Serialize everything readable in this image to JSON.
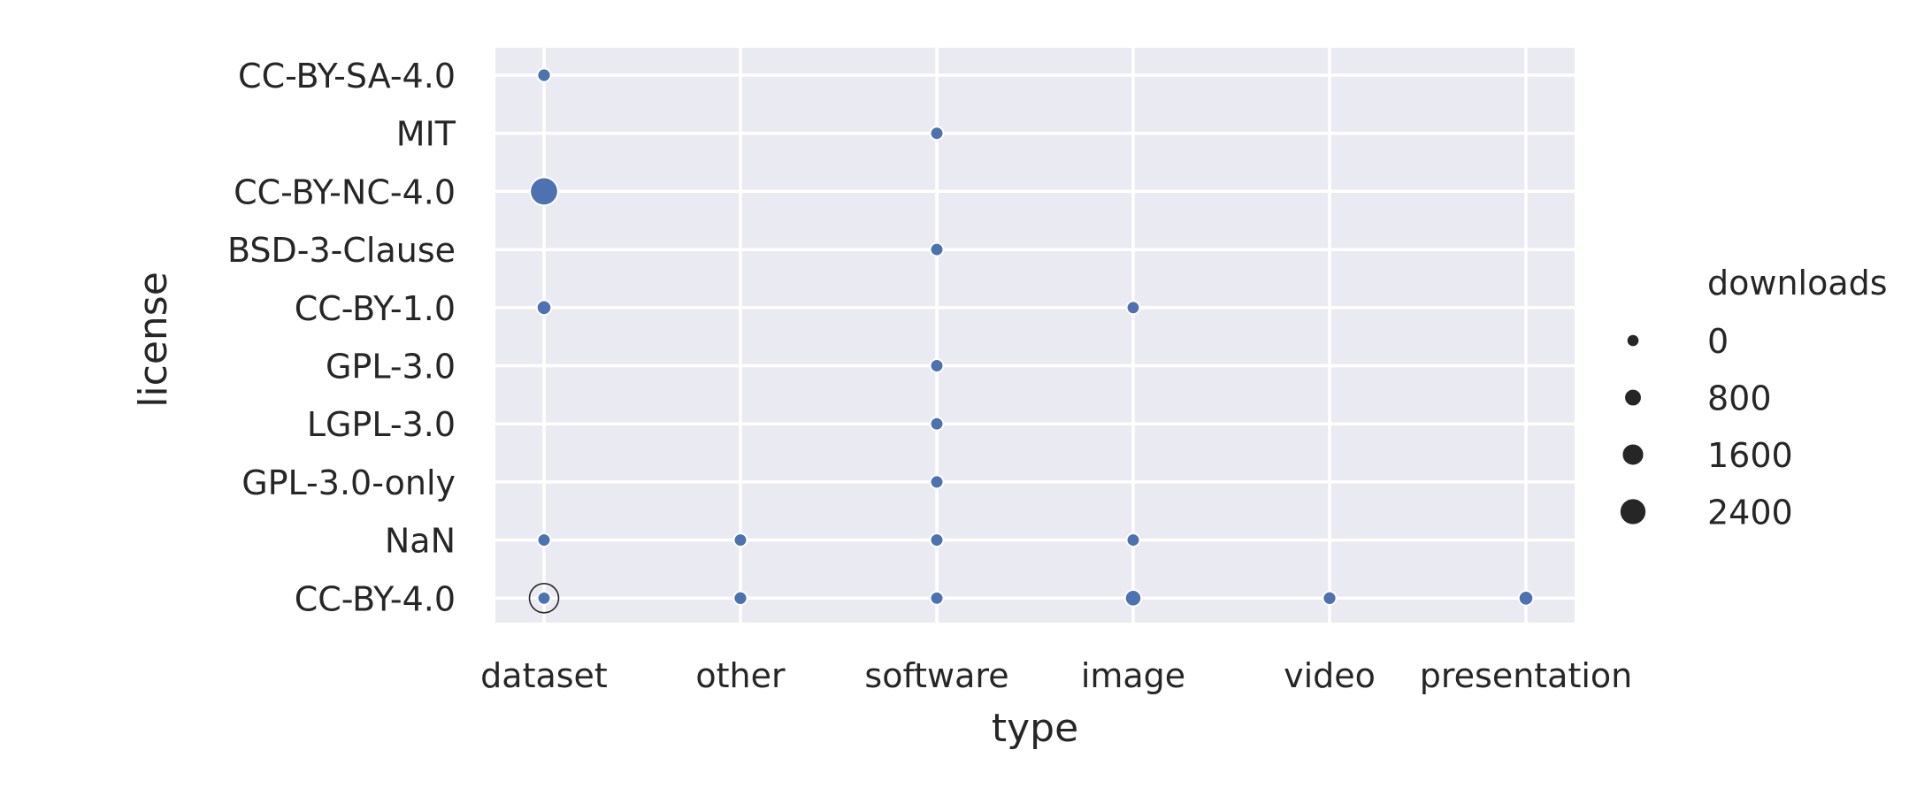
{
  "chart_data": {
    "type": "scatter",
    "xlabel": "type",
    "ylabel": "license",
    "x_categories": [
      "dataset",
      "other",
      "software",
      "image",
      "video",
      "presentation"
    ],
    "y_categories": [
      "CC-BY-SA-4.0",
      "MIT",
      "CC-BY-NC-4.0",
      "BSD-3-Clause",
      "CC-BY-1.0",
      "GPL-3.0",
      "LGPL-3.0",
      "GPL-3.0-only",
      "NaN",
      "CC-BY-4.0"
    ],
    "size_variable": "downloads",
    "size_range": [
      0,
      2800
    ],
    "legend": {
      "title": "downloads",
      "placement": "right",
      "entries": [
        {
          "label": "0",
          "value": 0
        },
        {
          "label": "800",
          "value": 800
        },
        {
          "label": "1600",
          "value": 1600
        },
        {
          "label": "2400",
          "value": 2400
        }
      ]
    },
    "points": [
      {
        "x": "dataset",
        "y": "CC-BY-SA-4.0",
        "downloads": 100
      },
      {
        "x": "software",
        "y": "MIT",
        "downloads": 50
      },
      {
        "x": "dataset",
        "y": "CC-BY-NC-4.0",
        "downloads": 2600
      },
      {
        "x": "software",
        "y": "BSD-3-Clause",
        "downloads": 50
      },
      {
        "x": "dataset",
        "y": "CC-BY-1.0",
        "downloads": 300
      },
      {
        "x": "image",
        "y": "CC-BY-1.0",
        "downloads": 30
      },
      {
        "x": "software",
        "y": "GPL-3.0",
        "downloads": 50
      },
      {
        "x": "software",
        "y": "LGPL-3.0",
        "downloads": 50
      },
      {
        "x": "software",
        "y": "GPL-3.0-only",
        "downloads": 50
      },
      {
        "x": "dataset",
        "y": "NaN",
        "downloads": 50
      },
      {
        "x": "other",
        "y": "NaN",
        "downloads": 50
      },
      {
        "x": "software",
        "y": "NaN",
        "downloads": 50
      },
      {
        "x": "image",
        "y": "NaN",
        "downloads": 50
      },
      {
        "x": "dataset",
        "y": "CC-BY-4.0",
        "downloads": 2800,
        "hollow": true
      },
      {
        "x": "dataset",
        "y": "CC-BY-4.0",
        "downloads": 50
      },
      {
        "x": "other",
        "y": "CC-BY-4.0",
        "downloads": 100
      },
      {
        "x": "software",
        "y": "CC-BY-4.0",
        "downloads": 50
      },
      {
        "x": "image",
        "y": "CC-BY-4.0",
        "downloads": 600
      },
      {
        "x": "video",
        "y": "CC-BY-4.0",
        "downloads": 100
      },
      {
        "x": "presentation",
        "y": "CC-BY-4.0",
        "downloads": 300
      }
    ],
    "grid": true,
    "colors": {
      "point": "#4c72b0",
      "background": "#eaeaf2",
      "grid": "#ffffff",
      "text": "#262626",
      "legend_marker": "#262626"
    }
  }
}
